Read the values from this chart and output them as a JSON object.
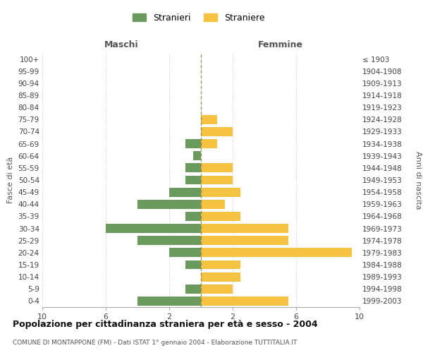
{
  "age_groups": [
    "0-4",
    "5-9",
    "10-14",
    "15-19",
    "20-24",
    "25-29",
    "30-34",
    "35-39",
    "40-44",
    "45-49",
    "50-54",
    "55-59",
    "60-64",
    "65-69",
    "70-74",
    "75-79",
    "80-84",
    "85-89",
    "90-94",
    "95-99",
    "100+"
  ],
  "birth_years": [
    "1999-2003",
    "1994-1998",
    "1989-1993",
    "1984-1988",
    "1979-1983",
    "1974-1978",
    "1969-1973",
    "1964-1968",
    "1959-1963",
    "1954-1958",
    "1949-1953",
    "1944-1948",
    "1939-1943",
    "1934-1938",
    "1929-1933",
    "1924-1928",
    "1919-1923",
    "1914-1918",
    "1909-1913",
    "1904-1908",
    "≤ 1903"
  ],
  "maschi": [
    4,
    1,
    0,
    1,
    2,
    4,
    6,
    1,
    4,
    2,
    1,
    1,
    0.5,
    1,
    0,
    0,
    0,
    0,
    0,
    0,
    0
  ],
  "femmine": [
    5.5,
    2,
    2.5,
    2.5,
    9.5,
    5.5,
    5.5,
    2.5,
    1.5,
    2.5,
    2,
    2,
    0,
    1,
    2,
    1,
    0,
    0,
    0,
    0,
    0
  ],
  "maschi_color": "#6b9a5e",
  "femmine_color": "#f5c242",
  "title": "Popolazione per cittadinanza straniera per età e sesso - 2004",
  "subtitle": "COMUNE DI MONTAPPONE (FM) - Dati ISTAT 1° gennaio 2004 - Elaborazione TUTTITALIA.IT",
  "xlabel_left": "Maschi",
  "xlabel_right": "Femmine",
  "ylabel_left": "Fasce di età",
  "ylabel_right": "Anni di nascita",
  "legend_stranieri": "Stranieri",
  "legend_straniere": "Straniere",
  "xlim": 10,
  "background_color": "#ffffff",
  "grid_color": "#cccccc"
}
